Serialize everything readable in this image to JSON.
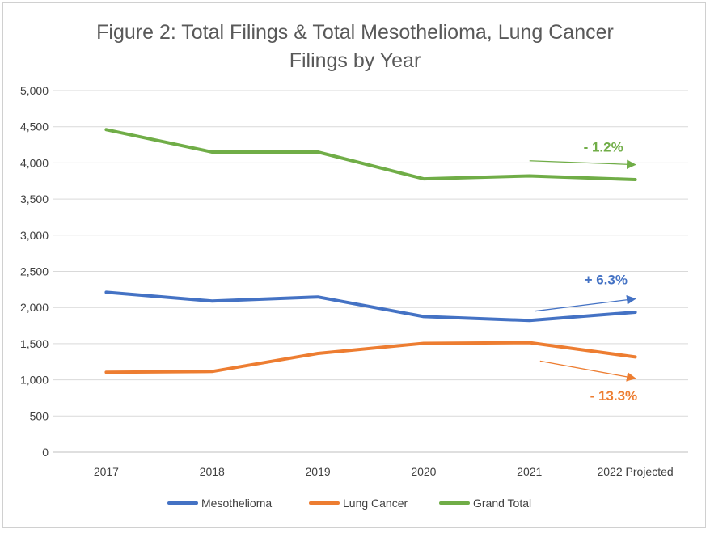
{
  "chart_data": {
    "type": "line",
    "title_line1": "Figure 2: Total Filings & Total Mesothelioma, Lung Cancer",
    "title_line2": "Filings by Year",
    "categories": [
      "2017",
      "2018",
      "2019",
      "2020",
      "2021",
      "2022 Projected"
    ],
    "ylim": [
      0,
      5000
    ],
    "yticks": [
      0,
      500,
      1000,
      1500,
      2000,
      2500,
      3000,
      3500,
      4000,
      4500,
      5000
    ],
    "ytick_labels": [
      "0",
      "500",
      "1,000",
      "1,500",
      "2,000",
      "2,500",
      "3,000",
      "3,500",
      "4,000",
      "4,500",
      "5,000"
    ],
    "grid": true,
    "legend_position": "bottom",
    "series": [
      {
        "name": "Mesothelioma",
        "color": "#4472C4",
        "values": [
          2210,
          2090,
          2145,
          1875,
          1820,
          1935
        ]
      },
      {
        "name": "Lung Cancer",
        "color": "#ED7D31",
        "values": [
          1105,
          1115,
          1365,
          1505,
          1515,
          1315
        ]
      },
      {
        "name": "Grand Total",
        "color": "#70AD47",
        "values": [
          4460,
          4150,
          4150,
          3780,
          3820,
          3770
        ]
      }
    ],
    "annotations": [
      {
        "text": "- 1.2%",
        "color": "#70AD47",
        "series": "Grand Total",
        "from": [
          4.0,
          4030
        ],
        "to": [
          5.0,
          3975
        ]
      },
      {
        "text": "+ 6.3%",
        "color": "#4472C4",
        "series": "Mesothelioma",
        "from": [
          4.05,
          1950
        ],
        "to": [
          5.0,
          2120
        ]
      },
      {
        "text": "- 13.3%",
        "color": "#ED7D31",
        "series": "Lung Cancer",
        "from": [
          4.1,
          1260
        ],
        "to": [
          5.0,
          1020
        ]
      }
    ]
  }
}
